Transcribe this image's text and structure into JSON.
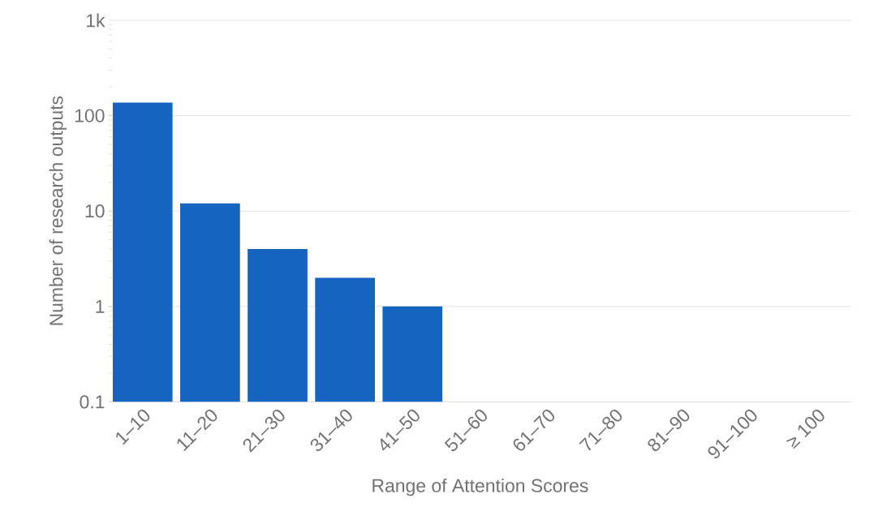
{
  "chart_data": {
    "type": "bar",
    "xlabel": "Range of Attention Scores",
    "ylabel": "Number of research outputs",
    "categories": [
      "1–10",
      "11–20",
      "21–30",
      "31–40",
      "41–50",
      "51–60",
      "61–70",
      "71–80",
      "81–90",
      "91–100",
      "≥ 100"
    ],
    "values": [
      137,
      12,
      4,
      2,
      1,
      null,
      null,
      null,
      null,
      null,
      null
    ],
    "color": "#1565c0",
    "log": true,
    "ylim": [
      0.1,
      1000
    ],
    "yticks": [
      0.1,
      1,
      10,
      100,
      {
        "value": 1000,
        "label": "1k"
      }
    ],
    "grid": "y"
  }
}
